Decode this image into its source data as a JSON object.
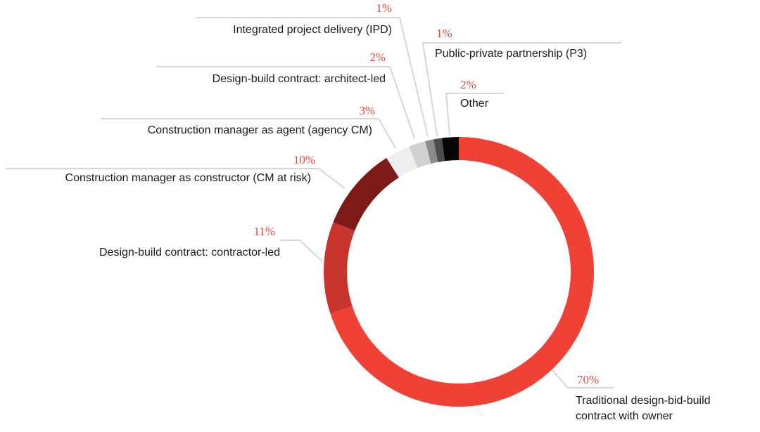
{
  "chart_data": {
    "type": "pie",
    "variant": "donut",
    "title": "",
    "series": [
      {
        "label": "Traditional design-bid-build contract with owner",
        "value": 70,
        "value_label": "70%",
        "color": "#ef4136"
      },
      {
        "label": "Design-build contract: contractor-led",
        "value": 11,
        "value_label": "11%",
        "color": "#c9342c"
      },
      {
        "label": "Construction manager as constructor (CM at risk)",
        "value": 10,
        "value_label": "10%",
        "color": "#7b1a17"
      },
      {
        "label": "Construction manager as agent (agency CM)",
        "value": 3,
        "value_label": "3%",
        "color": "#eeeef0"
      },
      {
        "label": "Design-build contract: architect-led",
        "value": 2,
        "value_label": "2%",
        "color": "#cfd0d2"
      },
      {
        "label": "Integrated project delivery (IPD)",
        "value": 1,
        "value_label": "1%",
        "color": "#8a8b8e"
      },
      {
        "label": "Public-private partnership (P3)",
        "value": 1,
        "value_label": "1%",
        "color": "#4b4c4e"
      },
      {
        "label": "Other",
        "value": 2,
        "value_label": "2%",
        "color": "#050505"
      }
    ],
    "legend": "none",
    "percent_color": "#e8473a"
  }
}
